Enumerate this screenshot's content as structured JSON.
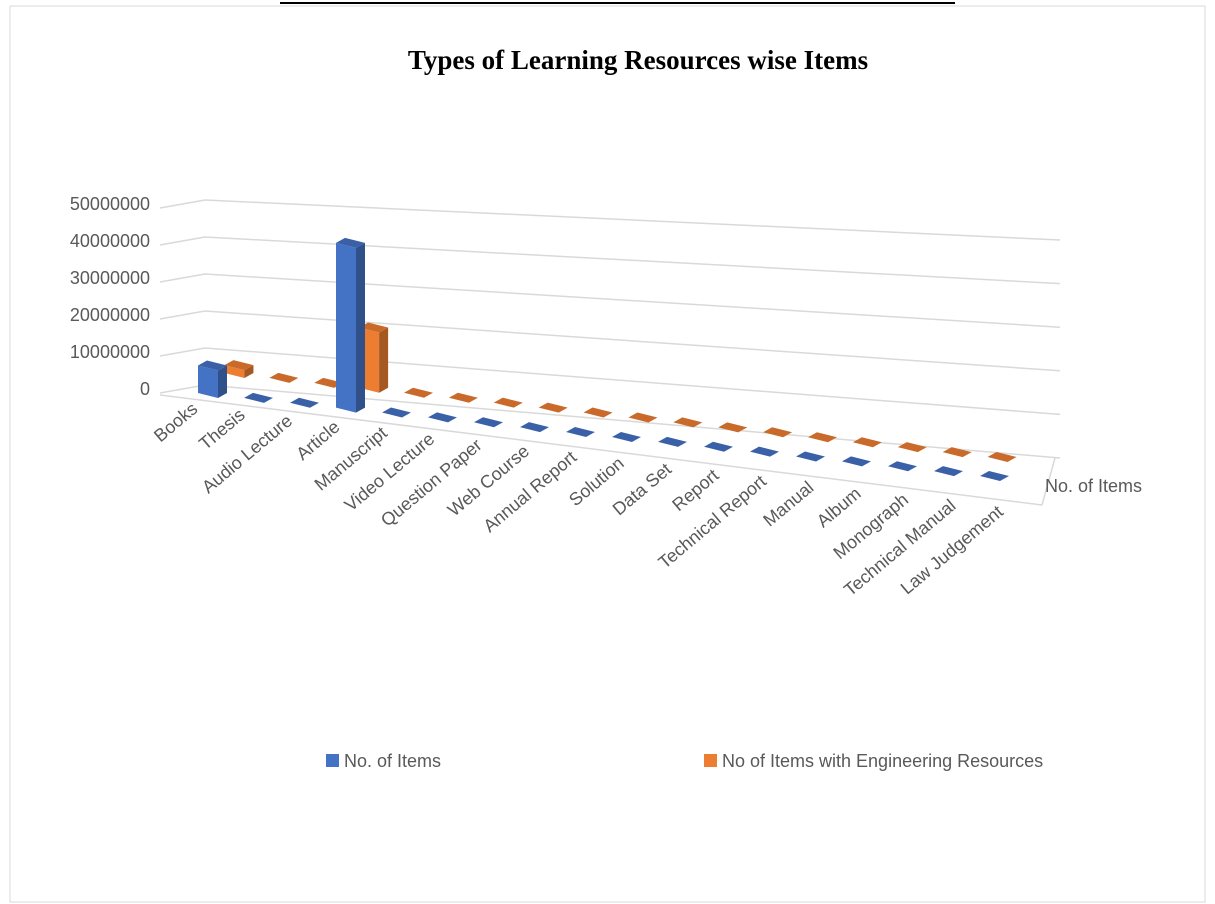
{
  "chart_data": {
    "type": "bar3d",
    "title": "Types of Learning Resources wise Items",
    "categories": [
      "Books",
      "Thesis",
      "Audio Lecture",
      "Article",
      "Manuscript",
      "Video Lecture",
      "Question Paper",
      "Web Course",
      "Annual Report",
      "Solution",
      "Data Set",
      "Report",
      "Technical Report",
      "Manual",
      "Album",
      "Monograph",
      "Technical Manual",
      "Law Judgement"
    ],
    "series": [
      {
        "name": "No. of Items",
        "color": "#4472c4",
        "values": [
          7000000,
          0,
          0,
          41000000,
          0,
          0,
          0,
          0,
          0,
          0,
          0,
          0,
          0,
          0,
          0,
          0,
          0,
          0
        ]
      },
      {
        "name": "No of Items with Engineering Resources",
        "color": "#ed7d31",
        "values": [
          2000000,
          0,
          0,
          15000000,
          0,
          0,
          0,
          0,
          0,
          0,
          0,
          0,
          0,
          0,
          0,
          0,
          0,
          0
        ]
      }
    ],
    "series_axis_label": "No. of Items",
    "ylim": [
      0,
      50000000
    ],
    "yticks": [
      0,
      10000000,
      20000000,
      30000000,
      40000000,
      50000000
    ],
    "grid": true,
    "legend": "bottom"
  }
}
